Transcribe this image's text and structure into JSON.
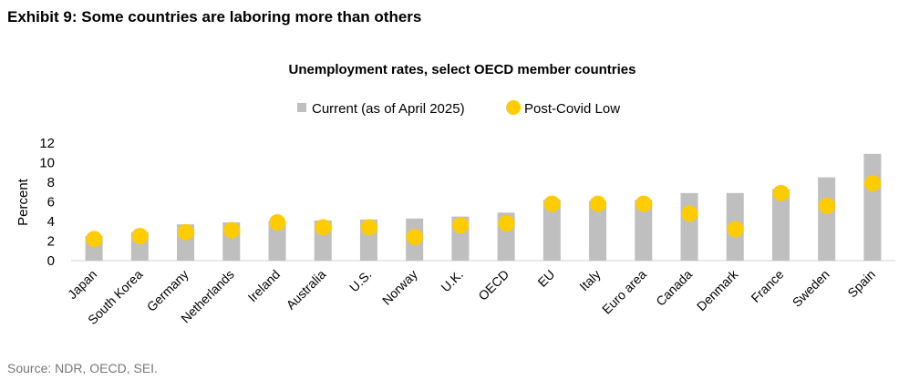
{
  "exhibit_title": "Exhibit 9: Some countries are laboring more than others",
  "source": "Source: NDR, OECD, SEI.",
  "chart_data": {
    "type": "bar",
    "title": "Unemployment rates, select OECD member countries",
    "xlabel": "",
    "ylabel": "Percent",
    "ylim": [
      0,
      12
    ],
    "yticks": [
      0,
      2,
      4,
      6,
      8,
      10,
      12
    ],
    "grid": false,
    "legend_position": "top",
    "categories": [
      "Japan",
      "South Korea",
      "Germany",
      "Netherlands",
      "Ireland",
      "Australia",
      "U.S.",
      "Norway",
      "U.K.",
      "OECD",
      "EU",
      "Italy",
      "Euro area",
      "Canada",
      "Denmark",
      "France",
      "Sweden",
      "Spain"
    ],
    "series": [
      {
        "name": "Current (as of April 2025)",
        "kind": "bar",
        "color": "#bfbfbf",
        "values": [
          2.5,
          2.9,
          3.7,
          3.9,
          4.0,
          4.1,
          4.2,
          4.3,
          4.5,
          4.9,
          6.2,
          6.1,
          6.2,
          6.9,
          6.9,
          7.3,
          8.5,
          10.9
        ]
      },
      {
        "name": "Post-Covid Low",
        "kind": "marker",
        "color": "#ffcc00",
        "values": [
          2.2,
          2.5,
          2.9,
          3.1,
          3.9,
          3.4,
          3.4,
          2.4,
          3.6,
          3.8,
          5.8,
          5.8,
          5.8,
          4.8,
          3.2,
          6.9,
          5.6,
          7.9
        ]
      }
    ]
  }
}
